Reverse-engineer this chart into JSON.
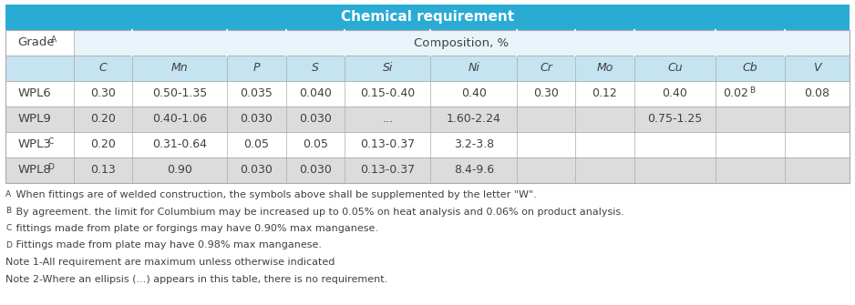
{
  "title": "Chemical requirement",
  "title_bg": "#29ABD4",
  "title_color": "#FFFFFF",
  "header1": "Composition, %",
  "col_headers": [
    "C",
    "Mn",
    "P",
    "S",
    "Si",
    "Ni",
    "Cr",
    "Mo",
    "Cu",
    "Cb",
    "V"
  ],
  "col_headers_bg": "#C5E3F0",
  "grade_col_header": "Grade",
  "grade_col_superscript": "A",
  "rows": [
    {
      "grade": "WPL6",
      "grade_super": "",
      "values": [
        "0.30",
        "0.50-1.35",
        "0.035",
        "0.040",
        "0.15-0.40",
        "0.40",
        "0.30",
        "0.12",
        "0.40",
        "0.02^B",
        "0.08"
      ],
      "bg": "#FFFFFF"
    },
    {
      "grade": "WPL9",
      "grade_super": "",
      "values": [
        "0.20",
        "0.40-1.06",
        "0.030",
        "0.030",
        "...",
        "1.60-2.24",
        "",
        "",
        "0.75-1.25",
        "",
        ""
      ],
      "bg": "#DCDCDC"
    },
    {
      "grade": "WPL3",
      "grade_super": "C",
      "values": [
        "0.20",
        "0.31-0.64",
        "0.05",
        "0.05",
        "0.13-0.37",
        "3.2-3.8",
        "",
        "",
        "",
        "",
        ""
      ],
      "bg": "#FFFFFF"
    },
    {
      "grade": "WPL8",
      "grade_super": "D",
      "values": [
        "0.13",
        "0.90",
        "0.030",
        "0.030",
        "0.13-0.37",
        "8.4-9.6",
        "",
        "",
        "",
        "",
        ""
      ],
      "bg": "#DCDCDC"
    }
  ],
  "footnotes": [
    [
      "A",
      " When fittings are of welded construction, the symbols above shall be supplemented by the letter \"W\"."
    ],
    [
      "B",
      " By agreement. the limit for Columbium may be increased up to 0.05% on heat analysis and 0.06% on product analysis."
    ],
    [
      "C",
      " fittings made from plate or forgings may have 0.90% max manganese."
    ],
    [
      "D",
      " Fittings made from plate may have 0.98% max manganese."
    ],
    [
      "",
      "Note 1-All requirement are maximum unless otherwise indicated"
    ],
    [
      "",
      "Note 2-Where an ellipsis (...) appears in this table, there is no requirement."
    ]
  ],
  "footnote_color": "#404040",
  "border_color": "#AAAAAA",
  "header_top_bg": "#E8F4FA",
  "header_top_bg2": "#FFFFFF"
}
